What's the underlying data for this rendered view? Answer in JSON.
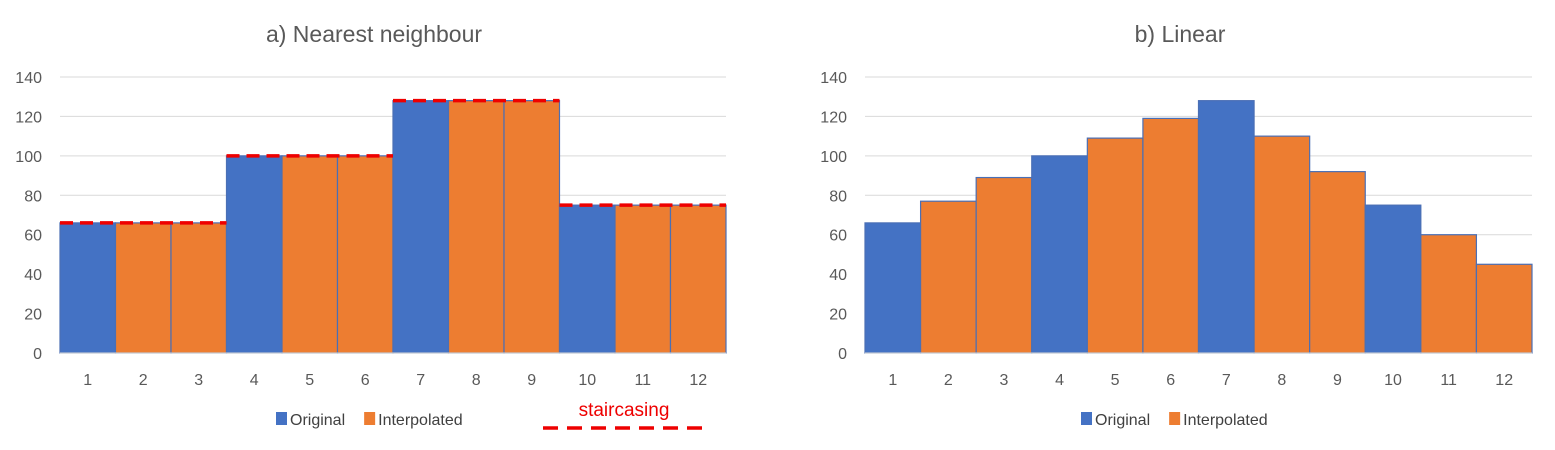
{
  "chart_data": [
    {
      "type": "bar",
      "title": "a) Nearest neighbour",
      "categories": [
        "1",
        "2",
        "3",
        "4",
        "5",
        "6",
        "7",
        "8",
        "9",
        "10",
        "11",
        "12"
      ],
      "values": [
        66,
        66,
        66,
        100,
        100,
        100,
        128,
        128,
        128,
        75,
        75,
        75
      ],
      "kinds": [
        "Original",
        "Interpolated",
        "Interpolated",
        "Original",
        "Interpolated",
        "Interpolated",
        "Original",
        "Interpolated",
        "Interpolated",
        "Original",
        "Interpolated",
        "Interpolated"
      ],
      "legend": [
        "Original",
        "Interpolated"
      ],
      "ylim": [
        0,
        140
      ],
      "yticks": [
        0,
        20,
        40,
        60,
        80,
        100,
        120,
        140
      ],
      "grid": true,
      "legend_position": "bottom",
      "annotation": {
        "label": "staircasing",
        "style": "dashed red line",
        "color": "#ee0000"
      }
    },
    {
      "type": "bar",
      "title": "b) Linear",
      "categories": [
        "1",
        "2",
        "3",
        "4",
        "5",
        "6",
        "7",
        "8",
        "9",
        "10",
        "11",
        "12"
      ],
      "values": [
        66,
        77,
        89,
        100,
        109,
        119,
        128,
        110,
        92,
        75,
        60,
        45
      ],
      "kinds": [
        "Original",
        "Interpolated",
        "Interpolated",
        "Original",
        "Interpolated",
        "Interpolated",
        "Original",
        "Interpolated",
        "Interpolated",
        "Original",
        "Interpolated",
        "Interpolated"
      ],
      "legend": [
        "Original",
        "Interpolated"
      ],
      "ylim": [
        0,
        140
      ],
      "yticks": [
        0,
        20,
        40,
        60,
        80,
        100,
        120,
        140
      ],
      "grid": true,
      "legend_position": "bottom"
    }
  ],
  "colors": {
    "Original": "#4472c4",
    "Interpolated": "#ed7d31",
    "bar_edge": "#4a6fb5",
    "grid": "#d9d9d9",
    "staircase": "#ee0000"
  }
}
